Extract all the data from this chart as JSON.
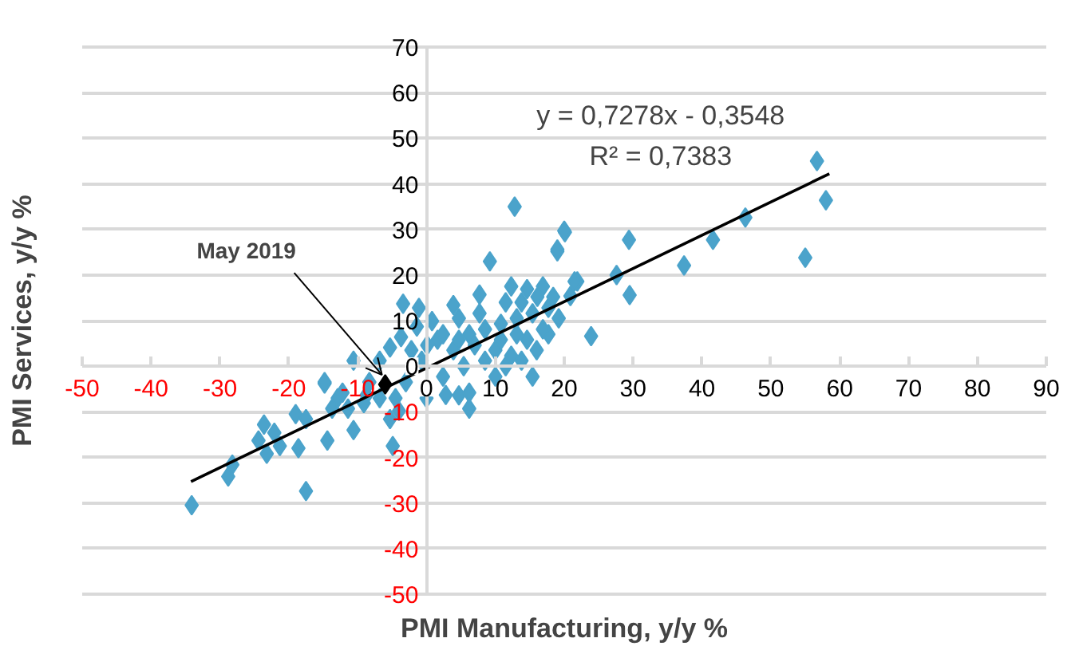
{
  "chart_data": {
    "type": "scatter",
    "xlabel": "PMI Manufacturing, y/y %",
    "ylabel": "PMI Services, y/y %",
    "xlim": [
      -50,
      90
    ],
    "ylim": [
      -50,
      70
    ],
    "xticks": [
      -50,
      -40,
      -30,
      -20,
      -10,
      0,
      10,
      20,
      30,
      40,
      50,
      60,
      70,
      80,
      90
    ],
    "yticks": [
      -50,
      -40,
      -30,
      -20,
      -10,
      0,
      10,
      20,
      30,
      40,
      50,
      60,
      70
    ],
    "grid": "y",
    "marker": "diamond",
    "annotations": [
      "y = 0,7278x - 0,3548",
      "R² = 0,7383",
      {
        "text": "May 2019",
        "x": -6,
        "y": -4
      }
    ],
    "series": [
      {
        "color": "#4ba3cb",
        "x": [
          56.7,
          58,
          55,
          46.3,
          41.6,
          37.4,
          29.4,
          29.5,
          27.6,
          21.9,
          20.1,
          19,
          20.9,
          23.9,
          17.7,
          16,
          15.4,
          12.8,
          9.2,
          -3.4,
          -1.1,
          -34.1,
          -28.8,
          -28.2,
          -17.5,
          -14.8,
          -18.6,
          -23.6,
          -22.1,
          -24.4,
          -21.3,
          -23.2,
          -19,
          -14.4,
          -12.9,
          -11.4,
          -10.6,
          -6.8,
          -4.9,
          -5.3,
          4.7,
          6.2,
          0,
          2.8,
          -4,
          -8.7,
          20,
          19,
          21.5,
          16.9,
          14.6,
          12.3,
          7.7,
          3.9,
          0.8,
          -1.4,
          -3.7,
          -5.3,
          -6.8,
          -10.6,
          -14.8,
          -12.2,
          -17.5,
          1.6,
          3.9,
          6.2,
          8.5,
          10.8,
          13.1,
          15.4,
          17.7,
          10,
          12.3,
          14.6,
          6.2,
          5.4,
          2.4,
          -0.7,
          -3,
          -4.5,
          -8.3,
          -9.1,
          -13.7,
          8.5,
          7.7,
          4.7,
          2.4,
          0.1,
          -2.2,
          11.5,
          13.8,
          16.1,
          18.4,
          19.2,
          16.9,
          13.1,
          10.8,
          7,
          4.7,
          10,
          11.5,
          13.8
        ],
        "values": [
          45,
          36.4,
          23.8,
          32.6,
          27.7,
          22.1,
          27.7,
          15.6,
          20,
          18.6,
          29.4,
          25.2,
          15.4,
          6.6,
          7,
          3.5,
          -2.3,
          35,
          23,
          13.7,
          12.8,
          -30.5,
          -24.2,
          -21.6,
          -27.4,
          -3.8,
          -18,
          -12.8,
          -14.6,
          -16.3,
          -17.5,
          -19.2,
          -10.5,
          -16.3,
          -7,
          -9.3,
          -14,
          -7,
          -17.5,
          -11.6,
          -6.4,
          -9.3,
          -7,
          -6.3,
          -9.8,
          -6.3,
          29.7,
          25.6,
          18.6,
          17.5,
          16.9,
          17.5,
          15.7,
          13.4,
          9.9,
          8.7,
          6.4,
          4.1,
          1.2,
          1.2,
          -3.5,
          -5.8,
          -11.6,
          5.8,
          3.5,
          7,
          8.1,
          9.3,
          10.5,
          11.6,
          12.8,
          3.5,
          2.3,
          5.8,
          -5.8,
          0,
          -2.3,
          1.2,
          -3.5,
          -7,
          -3.5,
          -8.1,
          -9.3,
          1.2,
          11.6,
          10.5,
          7,
          4.6,
          3.5,
          14,
          14,
          15.2,
          15.2,
          10.5,
          8.1,
          7,
          5.8,
          4.6,
          5.8,
          -2.3,
          0,
          1.2
        ]
      },
      {
        "type": "line",
        "marker": "none",
        "color": "#000000",
        "x": [
          -34.2,
          58.5
        ],
        "values": [
          -25.3,
          42.2
        ]
      },
      {
        "color": "#000000",
        "x": [
          -6
        ],
        "values": [
          -4
        ]
      }
    ]
  }
}
